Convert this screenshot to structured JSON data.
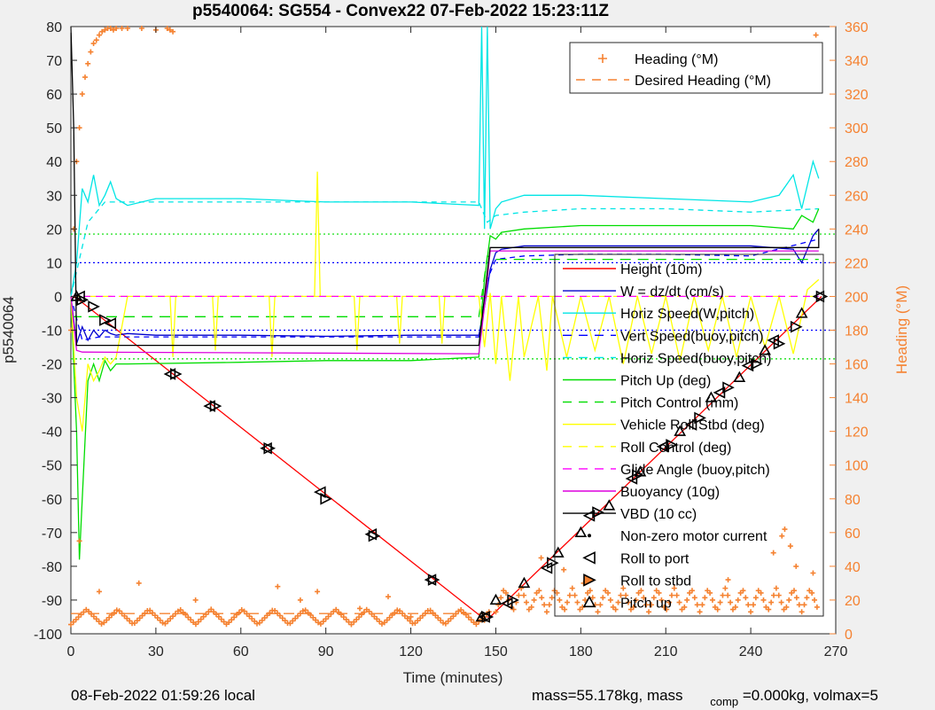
{
  "chart_data": {
    "type": "line",
    "title": "p5540064: SG554 - Convex22 07-Feb-2022 15:23:11Z",
    "xlabel": "Time (minutes)",
    "ylabel": "p5540064",
    "y2label": "Heading (°M)",
    "xlim": [
      0,
      270
    ],
    "ylim": [
      -100,
      80
    ],
    "y2lim": [
      0,
      360
    ],
    "xticks": [
      "0",
      "30",
      "60",
      "90",
      "120",
      "150",
      "180",
      "210",
      "240",
      "270"
    ],
    "yticks": [
      "80",
      "70",
      "60",
      "50",
      "40",
      "30",
      "20",
      "10",
      "0",
      "-10",
      "-20",
      "-30",
      "-40",
      "-50",
      "-60",
      "-70",
      "-80",
      "-90",
      "-100"
    ],
    "y2ticks": [
      "360",
      "340",
      "320",
      "300",
      "280",
      "260",
      "240",
      "220",
      "200",
      "180",
      "160",
      "140",
      "120",
      "100",
      "80",
      "60",
      "40",
      "20",
      "0"
    ],
    "grid": false,
    "legend_heading": {
      "placement": "top-right",
      "entries": [
        {
          "label": "Heading (°M)",
          "color": "#f58231",
          "style": "plus"
        },
        {
          "label": "Desired Heading (°M)",
          "color": "#f58231",
          "style": "dashed"
        }
      ]
    },
    "legend_main": {
      "placement": "right",
      "entries": [
        {
          "label": "Height (10m)",
          "color": "#ff0000",
          "style": "solid"
        },
        {
          "label": "W = dz/dt (cm/s)",
          "color": "#0000cc",
          "style": "solid"
        },
        {
          "label": "Horiz Speed(W,pitch)",
          "color": "#00e5e5",
          "style": "solid"
        },
        {
          "label": "Vert Speed(buoy,pitch)",
          "color": "#0000ff",
          "style": "dashed"
        },
        {
          "label": "Horiz Speed(buoy,pitch)",
          "color": "#00e5e5",
          "style": "dashed"
        },
        {
          "label": "Pitch Up (deg)",
          "color": "#00dd00",
          "style": "solid"
        },
        {
          "label": "Pitch Control (mm)",
          "color": "#00dd00",
          "style": "dashed"
        },
        {
          "label": "Vehicle Roll Stbd (deg)",
          "color": "#ffff00",
          "style": "solid"
        },
        {
          "label": "Roll Control (deg)",
          "color": "#ffff00",
          "style": "dashed"
        },
        {
          "label": "Glide Angle (buoy,pitch)",
          "color": "#ff00ff",
          "style": "dashed"
        },
        {
          "label": "Buoyancy (10g)",
          "color": "#dd00dd",
          "style": "solid"
        },
        {
          "label": "VBD (10 cc)",
          "color": "#000000",
          "style": "solid"
        },
        {
          "label": "Non-zero motor current",
          "color": "#000000",
          "style": "dot"
        },
        {
          "label": "Roll to port",
          "color": "#000000",
          "style": "tri-left"
        },
        {
          "label": "Roll to stbd",
          "color": "#000000",
          "style": "tri-right"
        },
        {
          "label": "Pitch up",
          "color": "#000000",
          "style": "tri-up"
        }
      ]
    },
    "series": [
      {
        "name": "Height (10m)",
        "axis": "left",
        "color": "#ff0000",
        "dash": "",
        "x": [
          0,
          2,
          145,
          148,
          265
        ],
        "y": [
          0,
          -0.5,
          -95,
          -95,
          0
        ]
      },
      {
        "name": "W = dz/dt (cm/s)",
        "axis": "left",
        "color": "#0000cc",
        "dash": "",
        "x": [
          0,
          2,
          4,
          6,
          8,
          10,
          12,
          14,
          16,
          20,
          30,
          60,
          90,
          120,
          144,
          146,
          148,
          150,
          152,
          160,
          180,
          210,
          240,
          255,
          258,
          260,
          262,
          264
        ],
        "y": [
          0,
          -14,
          -9,
          -13,
          -10,
          -12,
          -10,
          -11,
          -11.5,
          -11,
          -11.5,
          -11.5,
          -11.8,
          -11.5,
          -11.5,
          -3,
          8,
          13,
          14,
          15,
          15,
          15,
          15,
          14,
          10,
          14,
          18,
          20
        ]
      },
      {
        "name": "Horiz Speed(W,pitch)",
        "axis": "left",
        "color": "#00e5e5",
        "dash": "",
        "x": [
          0,
          2,
          4,
          6,
          8,
          10,
          12,
          14,
          16,
          20,
          25,
          30,
          60,
          90,
          120,
          144,
          145,
          146,
          147,
          148,
          150,
          152,
          160,
          180,
          210,
          240,
          250,
          255,
          258,
          262,
          264
        ],
        "y": [
          0,
          10,
          32,
          28,
          36,
          27,
          30,
          34,
          29,
          27,
          28,
          29,
          29,
          28,
          28,
          27,
          80,
          20,
          80,
          20,
          26,
          28,
          30,
          30,
          29,
          28,
          30,
          36,
          26,
          40,
          35
        ]
      },
      {
        "name": "Vert Speed(buoy,pitch)",
        "axis": "left",
        "color": "#0000ff",
        "dash": "6,5",
        "x": [
          0,
          4,
          10,
          20,
          60,
          90,
          120,
          144,
          147,
          150,
          160,
          180,
          210,
          240,
          264
        ],
        "y": [
          0,
          -13,
          -12,
          -12,
          -12,
          -12,
          -12,
          -12,
          5,
          11,
          12,
          12.5,
          12.5,
          12,
          17
        ]
      },
      {
        "name": "Horiz Speed(buoy,pitch)",
        "axis": "left",
        "color": "#00e5e5",
        "dash": "6,5",
        "x": [
          0,
          6,
          12,
          20,
          60,
          90,
          120,
          144,
          147,
          150,
          160,
          180,
          210,
          240,
          264
        ],
        "y": [
          0,
          22,
          28,
          28,
          28,
          28,
          28,
          28,
          22,
          24,
          25,
          26,
          26,
          25,
          26
        ]
      },
      {
        "name": "Pitch Up (deg)",
        "axis": "left",
        "color": "#00dd00",
        "dash": "",
        "x": [
          0,
          2,
          3,
          4,
          6,
          8,
          10,
          12,
          14,
          16,
          20,
          60,
          90,
          120,
          144,
          145,
          146,
          148,
          150,
          152,
          160,
          180,
          210,
          240,
          255,
          258,
          262,
          264
        ],
        "y": [
          0,
          -40,
          -78,
          -60,
          -25,
          -20,
          -25,
          -19,
          -22,
          -20,
          -20,
          -19.5,
          -19,
          -19,
          -18,
          -4,
          5,
          18,
          17,
          19,
          20,
          21,
          21,
          21,
          20,
          24,
          22,
          26
        ]
      },
      {
        "name": "Pitch Control (mm)",
        "axis": "left",
        "color": "#00dd00",
        "dash": "12,8",
        "x": [
          0,
          10,
          20,
          60,
          90,
          120,
          144,
          147,
          150,
          180,
          210,
          240,
          264
        ],
        "y": [
          -6,
          -6,
          -6,
          -6,
          -6,
          -6,
          -6,
          12,
          11,
          11,
          11,
          11,
          11
        ]
      },
      {
        "name": "Vehicle Roll Stbd (deg)",
        "axis": "left",
        "color": "#ffff00",
        "dash": "",
        "x": [
          0,
          2,
          4,
          6,
          8,
          10,
          12,
          14,
          16,
          20,
          35,
          36,
          37,
          50,
          51,
          52,
          70,
          71,
          72,
          86,
          87,
          88,
          100,
          101,
          102,
          115,
          116,
          117,
          130,
          131,
          132,
          144,
          146,
          148,
          150,
          152,
          155,
          158,
          160,
          165,
          168,
          170,
          175,
          180,
          185,
          190,
          195,
          200,
          205,
          210,
          215,
          220,
          225,
          230,
          235,
          240,
          245,
          250,
          255,
          260,
          264
        ],
        "y": [
          0,
          -30,
          -40,
          -20,
          -25,
          -22,
          -18,
          -20,
          -18,
          0,
          0,
          -18,
          0,
          0,
          -16,
          0,
          0,
          -18,
          0,
          0,
          37,
          0,
          0,
          -16,
          0,
          0,
          -14,
          0,
          0,
          -14,
          0,
          0,
          -15,
          1,
          -20,
          0,
          -25,
          0,
          -18,
          0,
          -22,
          0,
          -18,
          0,
          -16,
          0,
          -20,
          0,
          -17,
          0,
          -19,
          0,
          -16,
          0,
          -18,
          0,
          -15,
          0,
          -17,
          2,
          5
        ]
      },
      {
        "name": "Roll Control (deg)",
        "axis": "left",
        "color": "#ffff00",
        "dash": "10,8",
        "x": [
          0,
          264
        ],
        "y": [
          0,
          0
        ]
      },
      {
        "name": "Glide Angle (buoy,pitch)",
        "axis": "left",
        "color": "#ff00ff",
        "dash": "8,6",
        "x": [
          0,
          144,
          147,
          264
        ],
        "y": [
          0,
          0,
          0,
          0
        ]
      },
      {
        "name": "Buoyancy (10g)",
        "axis": "left",
        "color": "#dd00dd",
        "dash": "",
        "x": [
          0,
          2,
          4,
          144,
          146,
          148,
          264
        ],
        "y": [
          0,
          -16,
          -16.5,
          -17,
          -3,
          13.5,
          13.5
        ]
      },
      {
        "name": "VBD (10 cc)",
        "axis": "left",
        "color": "#000000",
        "dash": "",
        "x": [
          0,
          1,
          2,
          3,
          144,
          146,
          148,
          264,
          264
        ],
        "y": [
          80,
          50,
          -14.5,
          -14.5,
          -14.5,
          0,
          14.5,
          14.5,
          20
        ]
      },
      {
        "name": "Desired Heading (°M)",
        "axis": "right",
        "color": "#f58231",
        "dash": "12,8",
        "x": [
          0,
          148
        ],
        "y": [
          12,
          12
        ]
      }
    ],
    "guides": [
      {
        "y": 18.5,
        "color": "#00dd00",
        "dash": "2,3"
      },
      {
        "y": -18.5,
        "color": "#00dd00",
        "dash": "2,3"
      },
      {
        "y": 10,
        "color": "#0000ff",
        "dash": "2,3"
      },
      {
        "y": -10,
        "color": "#0000ff",
        "dash": "2,3"
      }
    ],
    "roll_markers": {
      "port": [
        [
          3,
          0
        ],
        [
          14,
          -8
        ],
        [
          35,
          -23
        ],
        [
          49,
          -32.5
        ],
        [
          69,
          -45
        ],
        [
          88,
          -58
        ],
        [
          106,
          -70.5
        ],
        [
          127,
          -84
        ],
        [
          146,
          -95
        ],
        [
          154,
          -91
        ],
        [
          168,
          -80.5
        ],
        [
          183,
          -65
        ],
        [
          198,
          -54
        ],
        [
          209,
          -44.5
        ],
        [
          219,
          -38
        ],
        [
          229,
          -28.5
        ],
        [
          239,
          -20.5
        ],
        [
          248,
          -13
        ],
        [
          264,
          0
        ]
      ],
      "stbd": [
        [
          4,
          -1
        ],
        [
          8,
          -3
        ],
        [
          12,
          -7
        ],
        [
          37,
          -23
        ],
        [
          51,
          -32.5
        ],
        [
          70,
          -45
        ],
        [
          90,
          -60
        ],
        [
          107,
          -71
        ],
        [
          128,
          -84
        ],
        [
          147,
          -95
        ],
        [
          156,
          -90
        ],
        [
          170,
          -79
        ],
        [
          186,
          -64
        ],
        [
          200,
          -53
        ],
        [
          212,
          -44
        ],
        [
          222,
          -36
        ],
        [
          232,
          -27
        ],
        [
          242,
          -20
        ],
        [
          250,
          -14
        ],
        [
          256,
          -9
        ],
        [
          265,
          0
        ]
      ],
      "pitch": [
        [
          2,
          0
        ],
        [
          145,
          -95
        ],
        [
          150,
          -90
        ],
        [
          160,
          -85
        ],
        [
          172,
          -76
        ],
        [
          180,
          -70
        ],
        [
          190,
          -62
        ],
        [
          201,
          -52
        ],
        [
          215,
          -40
        ],
        [
          226,
          -30
        ],
        [
          236,
          -24
        ],
        [
          245,
          -16
        ],
        [
          258,
          -5
        ]
      ]
    },
    "heading_points": {
      "early": [
        [
          0,
          180
        ],
        [
          1,
          240
        ],
        [
          2,
          280
        ],
        [
          3,
          300
        ],
        [
          4,
          320
        ],
        [
          5,
          330
        ],
        [
          6,
          338
        ],
        [
          7,
          345
        ],
        [
          8,
          350
        ],
        [
          9,
          352
        ],
        [
          10,
          355
        ],
        [
          11,
          357
        ],
        [
          12,
          358
        ],
        [
          13,
          359
        ],
        [
          14,
          359
        ],
        [
          15,
          358
        ],
        [
          16,
          359
        ],
        [
          18,
          360
        ],
        [
          20,
          359
        ],
        [
          25,
          360
        ],
        [
          30,
          358
        ],
        [
          34,
          359
        ],
        [
          35,
          358
        ],
        [
          36,
          357
        ],
        [
          263,
          355
        ]
      ],
      "waves_1": {
        "x0": 0,
        "x1": 148,
        "base": 10,
        "amp": 9,
        "period": 11
      },
      "waves_2": {
        "x0": 150,
        "x1": 264,
        "base": 20,
        "amp": 14,
        "period": 6
      },
      "spikes": [
        [
          3,
          55
        ],
        [
          10,
          25
        ],
        [
          24,
          30
        ],
        [
          44,
          20
        ],
        [
          73,
          28
        ],
        [
          81,
          20
        ],
        [
          87,
          25
        ],
        [
          102,
          15
        ],
        [
          112,
          22
        ],
        [
          120,
          10
        ],
        [
          146,
          8
        ],
        [
          166,
          45
        ],
        [
          174,
          38
        ],
        [
          181,
          30
        ],
        [
          232,
          32
        ],
        [
          248,
          48
        ],
        [
          251,
          58
        ],
        [
          252,
          62
        ],
        [
          254,
          52
        ],
        [
          256,
          40
        ],
        [
          262,
          36
        ]
      ]
    }
  },
  "footer": {
    "local_time": "08-Feb-2022 01:59:26 local",
    "mass_text": "mass=55.178kg, mass",
    "comp_sub": "comp",
    "comp_text": "=0.000kg, volmax=5"
  }
}
